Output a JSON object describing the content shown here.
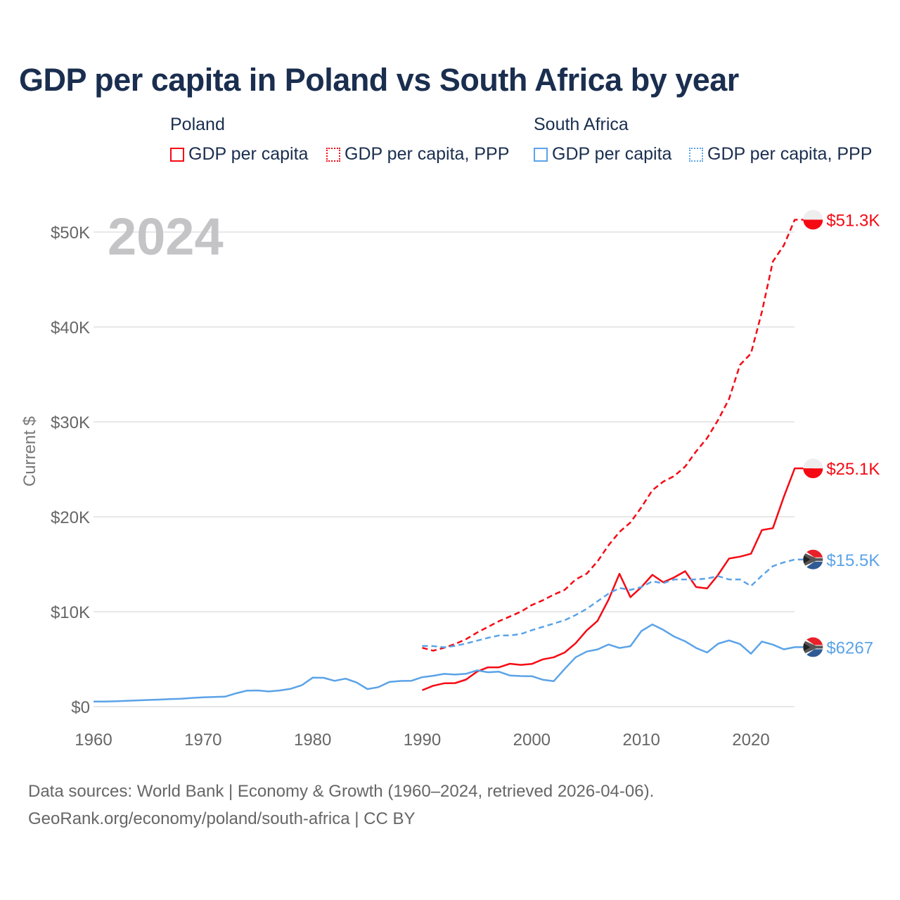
{
  "title": "GDP per capita in Poland vs South Africa by year",
  "legend": {
    "groups": [
      {
        "name": "Poland",
        "items": [
          "GDP per capita",
          "GDP per capita, PPP"
        ],
        "color": "#f50a14"
      },
      {
        "name": "South Africa",
        "items": [
          "GDP per capita",
          "GDP per capita, PPP"
        ],
        "color": "#5ba3e8"
      }
    ]
  },
  "year_label": "2024",
  "footer": {
    "line1": "Data sources: World Bank | Economy & Growth (1960–2024, retrieved 2026-04-06).",
    "line2": "GeoRank.org/economy/poland/south-africa | CC BY"
  },
  "chart_data": {
    "type": "line",
    "title": "GDP per capita in Poland vs South Africa by year",
    "xlabel": "",
    "ylabel": "Current $",
    "xlim": [
      1960,
      2024
    ],
    "ylim": [
      0,
      50000
    ],
    "xticks": [
      1960,
      1970,
      1980,
      1990,
      2000,
      2010,
      2020
    ],
    "xtick_labels": [
      "1960",
      "1970",
      "1980",
      "1990",
      "2000",
      "2010",
      "2020"
    ],
    "yticks": [
      0,
      10000,
      20000,
      30000,
      40000,
      50000
    ],
    "ytick_labels": [
      "$0",
      "$10K",
      "$20K",
      "$30K",
      "$40K",
      "$50K"
    ],
    "grid": true,
    "legend_position": "top",
    "series": [
      {
        "name": "Poland GDP per capita, PPP",
        "country": "Poland",
        "color": "#f50a14",
        "dash": true,
        "end_label": "$51.3K",
        "start": 1990,
        "values": [
          6200,
          5900,
          6200,
          6600,
          7100,
          7800,
          8400,
          9000,
          9500,
          10000,
          10700,
          11200,
          11800,
          12300,
          13400,
          14000,
          15300,
          17000,
          18400,
          19400,
          21000,
          22800,
          23700,
          24300,
          25300,
          26900,
          28300,
          30200,
          32400,
          36000,
          37200,
          41600,
          46900,
          48600,
          51300
        ]
      },
      {
        "name": "Poland GDP per capita",
        "country": "Poland",
        "color": "#f50a14",
        "dash": false,
        "end_label": "$25.1K",
        "start": 1990,
        "values": [
          1730,
          2200,
          2460,
          2480,
          2850,
          3690,
          4140,
          4140,
          4520,
          4400,
          4500,
          4980,
          5200,
          5700,
          6680,
          8020,
          9030,
          11250,
          14000,
          11530,
          12600,
          13890,
          13100,
          13620,
          14270,
          12600,
          12450,
          13890,
          15600,
          15800,
          16100,
          18600,
          18800,
          22100,
          25100
        ]
      },
      {
        "name": "South Africa GDP per capita, PPP",
        "country": "South Africa",
        "color": "#5ba3e8",
        "dash": true,
        "end_label": "$15.5K",
        "start": 1990,
        "values": [
          6400,
          6380,
          6250,
          6400,
          6650,
          6950,
          7250,
          7500,
          7500,
          7650,
          8050,
          8400,
          8750,
          9100,
          9650,
          10300,
          11100,
          11900,
          12500,
          12300,
          12600,
          13200,
          13000,
          13400,
          13400,
          13400,
          13500,
          13750,
          13400,
          13400,
          12700,
          13800,
          14800,
          15200,
          15500
        ]
      },
      {
        "name": "South Africa GDP per capita",
        "country": "South Africa",
        "color": "#5ba3e8",
        "dash": false,
        "end_label": "$6267",
        "start": 1960,
        "values": [
          530,
          540,
          560,
          610,
          660,
          700,
          740,
          800,
          830,
          920,
          980,
          1020,
          1050,
          1400,
          1690,
          1700,
          1600,
          1700,
          1880,
          2250,
          3050,
          3040,
          2720,
          2950,
          2550,
          1850,
          2050,
          2600,
          2700,
          2720,
          3100,
          3250,
          3450,
          3380,
          3460,
          3820,
          3620,
          3680,
          3280,
          3220,
          3210,
          2840,
          2680,
          3980,
          5200,
          5800,
          6030,
          6550,
          6180,
          6370,
          7960,
          8660,
          8090,
          7380,
          6880,
          6180,
          5700,
          6630,
          6980,
          6600,
          5580,
          6860,
          6530,
          6040,
          6267
        ]
      }
    ]
  }
}
